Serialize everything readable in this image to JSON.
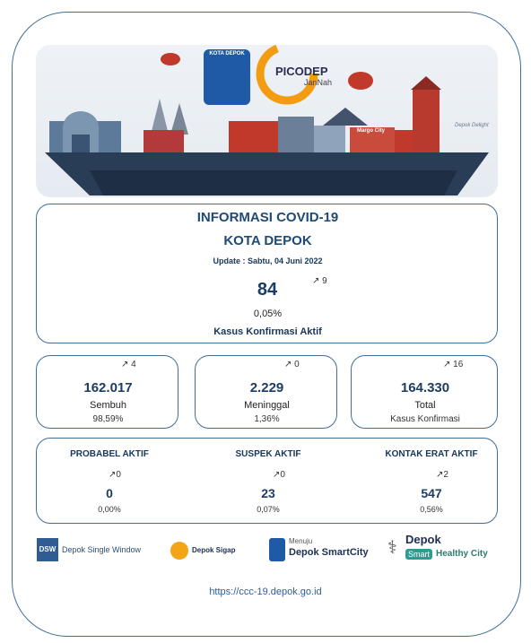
{
  "banner": {
    "badge_title": "KOTA DEPOK",
    "brand_name": "PICODEP",
    "brand_sub": "JanNah",
    "city_label": "Margo City",
    "corner_tag": "Depok Delight"
  },
  "header": {
    "title": "INFORMASI COVID-19",
    "subtitle": "KOTA DEPOK",
    "update_label": "Update :",
    "update_date": "Sabtu, 04 Juni 2022"
  },
  "active": {
    "value": "84",
    "trend": "9",
    "percent": "0,05%",
    "label": "Kasus Konfirmasi Aktif"
  },
  "stats": [
    {
      "value": "162.017",
      "trend": "4",
      "label": "Sembuh",
      "sub": "98,59%"
    },
    {
      "value": "2.229",
      "trend": "0",
      "label": "Meninggal",
      "sub": "1,36%"
    },
    {
      "value": "164.330",
      "trend": "16",
      "label": "Total",
      "sub": "Kasus Konfirmasi"
    }
  ],
  "extra": [
    {
      "title": "PROBABEL AKTIF",
      "trend": "0",
      "value": "0",
      "percent": "0,00%"
    },
    {
      "title": "SUSPEK AKTIF",
      "trend": "0",
      "value": "23",
      "percent": "0,07%"
    },
    {
      "title": "KONTAK ERAT AKTIF",
      "trend": "2",
      "value": "547",
      "percent": "0,56%"
    }
  ],
  "partners": {
    "dsw_abbr": "DSW",
    "dsw_name": "Depok Single Window",
    "sigap": "Depok Sigap",
    "smart_prefix": "Menuju",
    "smart_name": "Depok SmartCity",
    "healthy_top": "Depok",
    "healthy_smart": "Smart",
    "healthy_rest": "Healthy City"
  },
  "footer": {
    "url": "https://ccc-19.depok.go.id"
  },
  "colors": {
    "border": "#3d6f9c",
    "title": "#1f4a75",
    "text": "#17365c"
  }
}
